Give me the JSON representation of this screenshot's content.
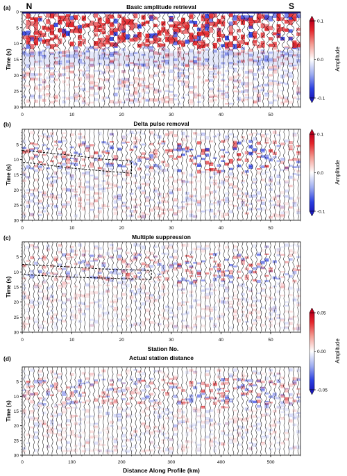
{
  "chart_data": [
    {
      "type": "heatmap",
      "panel_label": "(a)",
      "title": "Basic amplitude retrieval",
      "xlabel": "",
      "ylabel": "Time (s)",
      "xlim": [
        0,
        56
      ],
      "ylim": [
        0,
        30
      ],
      "x_ticks": [
        0,
        10,
        20,
        30,
        40,
        50
      ],
      "y_ticks": [
        0,
        5,
        10,
        15,
        20,
        25,
        30
      ],
      "markers": {
        "left": "N",
        "right": "S"
      },
      "colorbar": {
        "label": "Amplitude",
        "min": -0.1,
        "max": 0.1,
        "ticks": [
          0.1,
          0.0,
          -0.1
        ],
        "tick_labels": [
          "0.1",
          "0.0",
          "-0.1"
        ]
      },
      "grid": false
    },
    {
      "type": "heatmap",
      "panel_label": "(b)",
      "title": "Delta pulse removal",
      "xlabel": "",
      "ylabel": "Time (s)",
      "xlim": [
        0,
        56
      ],
      "ylim": [
        0,
        30
      ],
      "x_ticks": [
        0,
        10,
        20,
        30,
        40,
        50
      ],
      "y_ticks": [
        5,
        10,
        15,
        20,
        25,
        30
      ],
      "annotation_polygon": [
        [
          0,
          7
        ],
        [
          4,
          7.6
        ],
        [
          10,
          8.6
        ],
        [
          16,
          9.8
        ],
        [
          22,
          10.5
        ],
        [
          22,
          14.5
        ],
        [
          16,
          13.7
        ],
        [
          10,
          12.8
        ],
        [
          4,
          11.6
        ],
        [
          0,
          10.8
        ]
      ],
      "colorbar": {
        "label": "Amplitude",
        "min": -0.1,
        "max": 0.1,
        "ticks": [
          0.1,
          0.0,
          -0.1
        ],
        "tick_labels": [
          "0.1",
          "0.0",
          "-0.1"
        ]
      },
      "grid": false
    },
    {
      "type": "heatmap",
      "panel_label": "(c)",
      "title": "Multiple suppression",
      "xlabel": "Station No.",
      "ylabel": "Time (s)",
      "xlim": [
        0,
        56
      ],
      "ylim": [
        0,
        30
      ],
      "x_ticks": [
        0,
        10,
        20,
        30,
        40,
        50
      ],
      "y_ticks": [
        5,
        10,
        15,
        20,
        25,
        30
      ],
      "annotation_polygon": [
        [
          0,
          7.5
        ],
        [
          8,
          8.2
        ],
        [
          16,
          9
        ],
        [
          26,
          9.5
        ],
        [
          26,
          12.5
        ],
        [
          16,
          12
        ],
        [
          8,
          11.6
        ],
        [
          0,
          10.8
        ]
      ],
      "grid": false
    },
    {
      "type": "heatmap",
      "panel_label": "(d)",
      "title": "Actual station distance",
      "xlabel": "Distance Along Profile (km)",
      "ylabel": "Time (s)",
      "xlim": [
        0,
        560
      ],
      "ylim": [
        0,
        30
      ],
      "x_ticks": [
        0,
        100,
        200,
        300,
        400,
        500
      ],
      "y_ticks": [
        5,
        10,
        15,
        20,
        25,
        30
      ],
      "colorbar": {
        "label": "Amplitude",
        "min": -0.05,
        "max": 0.05,
        "ticks": [
          0.05,
          0.0,
          -0.05
        ],
        "tick_labels": [
          "0.05",
          "0.00",
          "-0.05"
        ]
      },
      "grid": false
    }
  ]
}
